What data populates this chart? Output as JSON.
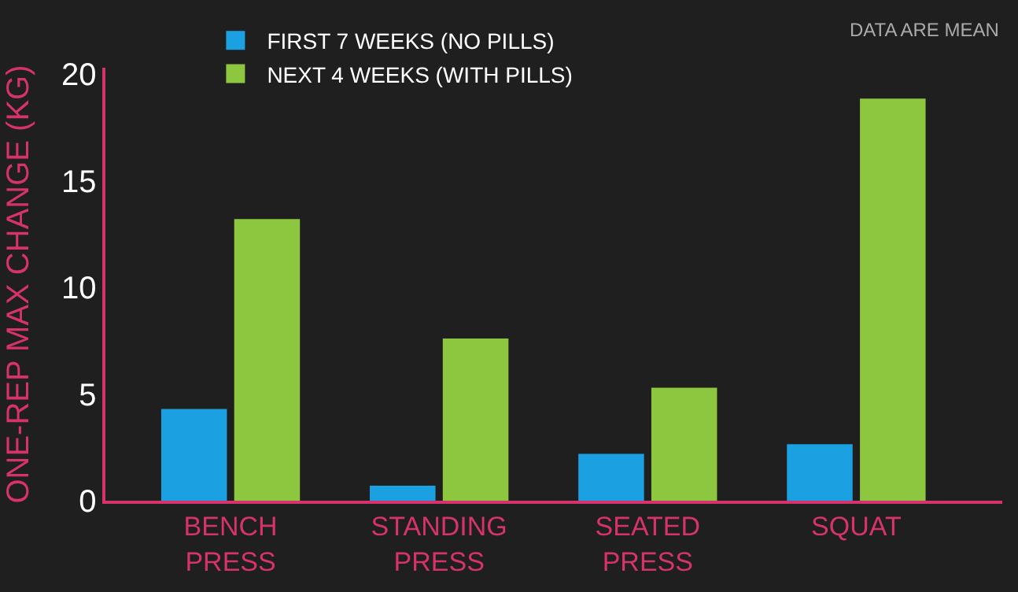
{
  "chart_data": {
    "type": "bar",
    "ylabel": "ONE-REP MAX CHANGE (KG)",
    "categories": [
      "BENCH PRESS",
      "STANDING PRESS",
      "SEATED PRESS",
      "SQUAT"
    ],
    "series": [
      {
        "name": "FIRST 7 WEEKS (NO PILLS)",
        "color": "#1ba1e2",
        "values": [
          4.3,
          0.7,
          2.2,
          2.65
        ]
      },
      {
        "name": "NEXT 4 WEEKS (WITH PILLS)",
        "color": "#8dc63f",
        "values": [
          13.2,
          7.6,
          5.3,
          18.85
        ]
      }
    ],
    "ylim": [
      0,
      20.3
    ],
    "yticks": [
      0,
      5,
      10,
      15,
      20
    ],
    "grid": false,
    "legend": "top left",
    "annotations": [
      "DATA ARE MEAN"
    ]
  }
}
